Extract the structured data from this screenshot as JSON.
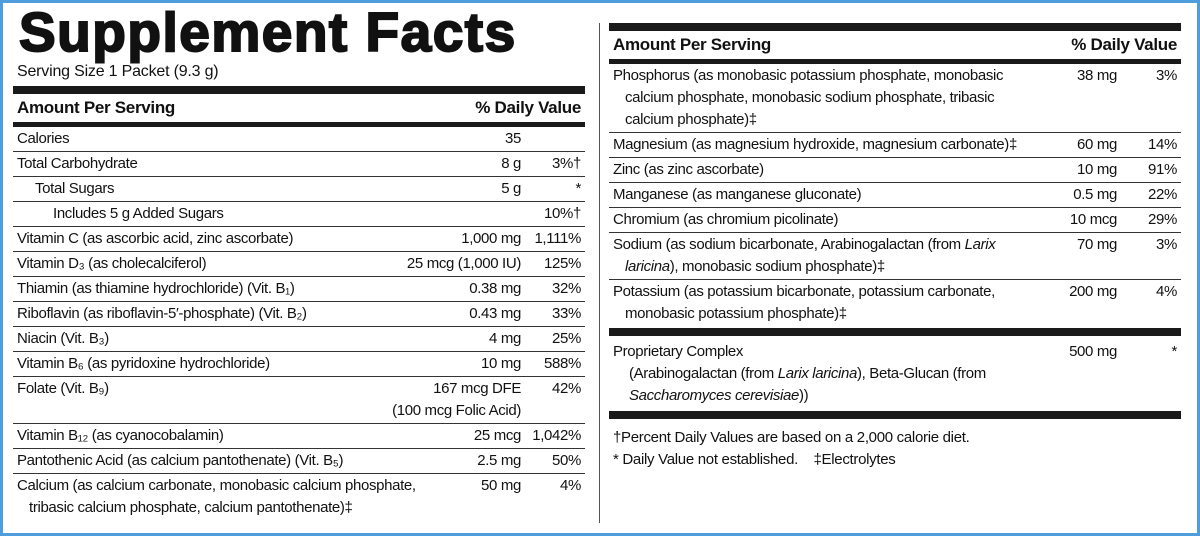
{
  "title": "Supplement Facts",
  "serving_size": "Serving Size 1 Packet (9.3 g)",
  "left": {
    "header": [
      "Amount Per Serving",
      "% Daily Value"
    ],
    "rows": [
      {
        "name": "Calories",
        "amount": "35"
      },
      {
        "name": "Total Carbohydrate",
        "amount": "8 g",
        "dv": "3%†"
      },
      {
        "name": "Total Sugars",
        "amount": "5 g",
        "dv": "*"
      },
      {
        "name": "Includes 5 g Added Sugars",
        "dv": "10%†"
      },
      {
        "name": "Vitamin C (as ascorbic acid, zinc ascorbate)",
        "amount": "1,000 mg",
        "dv": "1,111%"
      },
      {
        "name": "Vitamin D₃ (as cholecalciferol)",
        "amount": "25 mcg (1,000 IU)",
        "dv": "125%"
      },
      {
        "name": "Thiamin (as thiamine hydrochloride) (Vit. B₁)",
        "amount": "0.38 mg",
        "dv": "32%"
      },
      {
        "name": "Riboflavin (as riboflavin-5′-phosphate) (Vit. B₂)",
        "amount": "0.43 mg",
        "dv": "33%"
      },
      {
        "name": "Niacin (Vit. B₃)",
        "amount": "4 mg",
        "dv": "25%"
      },
      {
        "name": "Vitamin B₆ (as pyridoxine hydrochloride)",
        "amount": "10 mg",
        "dv": "588%"
      },
      {
        "name": "Folate (Vit. B₉)",
        "amount": "167 mcg DFE\n(100 mcg Folic Acid)",
        "dv": "42%"
      },
      {
        "name": "Vitamin B₁₂ (as cyanocobalamin)",
        "amount": "25 mcg",
        "dv": "1,042%"
      },
      {
        "name": "Pantothenic Acid (as calcium pantothenate) (Vit. B₅)",
        "amount": "2.5 mg",
        "dv": "50%"
      },
      {
        "name": "Calcium (as calcium carbonate, monobasic calcium phosphate, tribasic calcium phosphate, calcium pantothenate)‡",
        "amount": "50 mg",
        "dv": "4%"
      }
    ]
  },
  "right": {
    "header": [
      "Amount Per Serving",
      "% Daily Value"
    ],
    "rows": [
      {
        "name": "Phosphorus (as monobasic potassium phosphate, monobasic calcium phosphate, monobasic sodium phosphate, tribasic calcium phosphate)‡",
        "amount": "38 mg",
        "dv": "3%"
      },
      {
        "name": "Magnesium (as magnesium hydroxide, magnesium carbonate)‡",
        "amount": "60 mg",
        "dv": "14%"
      },
      {
        "name": "Zinc (as zinc ascorbate)",
        "amount": "10 mg",
        "dv": "91%"
      },
      {
        "name": "Manganese (as manganese gluconate)",
        "amount": "0.5 mg",
        "dv": "22%"
      },
      {
        "name": "Chromium (as chromium picolinate)",
        "amount": "10 mcg",
        "dv": "29%"
      },
      {
        "name": [
          "Sodium (as sodium bicarbonate, Arabinogalactan (from ",
          "Larix laricina",
          "), monobasic sodium phosphate)‡"
        ],
        "amount": "70 mg",
        "dv": "3%"
      },
      {
        "name": "Potassium (as potassium bicarbonate, potassium carbonate, monobasic potassium phosphate)‡",
        "amount": "200 mg",
        "dv": "4%"
      }
    ],
    "proprietary": {
      "name": "Proprietary Complex",
      "amount": "500 mg",
      "dv": "*",
      "description": [
        "(Arabinogalactan (from ",
        "Larix laricina",
        "), Beta-Glucan (from ",
        "Saccharomyces cerevisiae",
        "))"
      ]
    }
  },
  "footnotes": [
    "†Percent Daily Values are based on a 2,000 calorie diet.",
    "* Daily Value not established.",
    "‡Electrolytes"
  ]
}
